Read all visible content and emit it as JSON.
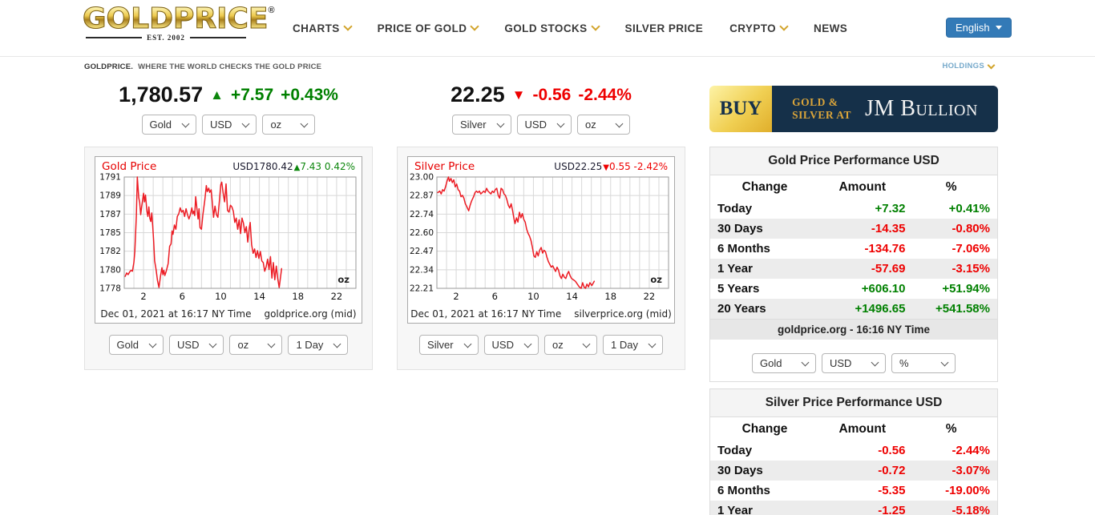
{
  "colors": {
    "green": "#008000",
    "red": "#ee0000",
    "gold_accent": "#d2a42b",
    "navy": "#153049",
    "link_blue": "#337ab7",
    "holdings_blue": "#76a9cb",
    "chart_line": "#ec1c24"
  },
  "header": {
    "logo": {
      "text": "GOLDPRICE",
      "reg": "®",
      "subtext": "EST. 2002"
    },
    "nav": [
      {
        "label": "CHARTS",
        "dropdown": true
      },
      {
        "label": "PRICE OF GOLD",
        "dropdown": true
      },
      {
        "label": "GOLD STOCKS",
        "dropdown": true
      },
      {
        "label": "SILVER PRICE",
        "dropdown": false
      },
      {
        "label": "CRYPTO",
        "dropdown": true
      },
      {
        "label": "NEWS",
        "dropdown": false
      }
    ],
    "language": "English"
  },
  "tagline": {
    "brand": "GOLDPRICE.",
    "text": "WHERE THE WORLD CHECKS THE GOLD PRICE",
    "holdings": "HOLDINGS"
  },
  "tickers": [
    {
      "price": "1,780.57",
      "arrow": "▲",
      "direction": "up",
      "change": "+7.57",
      "change_pct": "+0.43%",
      "selects": [
        "Gold",
        "USD",
        "oz"
      ]
    },
    {
      "price": "22.25",
      "arrow": "▼",
      "direction": "down",
      "change": "-0.56",
      "change_pct": "-2.44%",
      "selects": [
        "Silver",
        "USD",
        "oz"
      ]
    }
  ],
  "banner": {
    "buy": "BUY",
    "line1": "Gold &",
    "line2": "Silver at",
    "brand": "JM Bullion"
  },
  "chart_data": [
    {
      "type": "line",
      "title": "Gold Price",
      "legend": {
        "value": "USD1780.42",
        "arrow": "▲",
        "change": "7.43",
        "pct": "0.42%",
        "direction": "up"
      },
      "unit_label": "oz",
      "caption": "Dec 01, 2021 at 16:17 NY Time",
      "source": "goldprice.org (mid)",
      "ylim": [
        1778,
        1791
      ],
      "xlim": [
        0,
        24
      ],
      "yticks": [
        "1791",
        "1789",
        "1787",
        "1785",
        "1782",
        "1780",
        "1778"
      ],
      "xticks": [
        2,
        6,
        10,
        14,
        18,
        22
      ],
      "selects": [
        "Gold",
        "USD",
        "oz",
        "1 Day"
      ],
      "points": [
        [
          0.1,
          1779.4
        ],
        [
          0.25,
          1779.8
        ],
        [
          0.4,
          1779.6
        ],
        [
          0.55,
          1779.9
        ],
        [
          0.7,
          1780.1
        ],
        [
          0.85,
          1780.0
        ],
        [
          1.0,
          1781.0
        ],
        [
          1.1,
          1782.3
        ],
        [
          1.25,
          1786.5
        ],
        [
          1.35,
          1791.0
        ],
        [
          1.5,
          1788.6
        ],
        [
          1.6,
          1788.0
        ],
        [
          1.7,
          1786.6
        ],
        [
          1.8,
          1787.5
        ],
        [
          1.9,
          1788.3
        ],
        [
          2.0,
          1789.1
        ],
        [
          2.1,
          1788.1
        ],
        [
          2.2,
          1788.9
        ],
        [
          2.35,
          1787.0
        ],
        [
          2.45,
          1786.4
        ],
        [
          2.55,
          1787.5
        ],
        [
          2.65,
          1786.2
        ],
        [
          2.75,
          1785.8
        ],
        [
          2.85,
          1786.8
        ],
        [
          2.95,
          1785.3
        ],
        [
          3.05,
          1783.5
        ],
        [
          3.15,
          1781.2
        ],
        [
          3.3,
          1780.2
        ],
        [
          3.45,
          1778.9
        ],
        [
          3.6,
          1778.1
        ],
        [
          3.75,
          1779.4
        ],
        [
          3.9,
          1780.4
        ],
        [
          4.0,
          1779.6
        ],
        [
          4.1,
          1780.1
        ],
        [
          4.2,
          1779.5
        ],
        [
          4.35,
          1780.0
        ],
        [
          4.55,
          1780.9
        ],
        [
          4.7,
          1782.9
        ],
        [
          4.85,
          1783.2
        ],
        [
          4.95,
          1784.7
        ],
        [
          5.05,
          1784.3
        ],
        [
          5.2,
          1785.4
        ],
        [
          5.35,
          1784.9
        ],
        [
          5.5,
          1786.4
        ],
        [
          5.65,
          1786.7
        ],
        [
          5.8,
          1787.4
        ],
        [
          5.95,
          1786.9
        ],
        [
          6.1,
          1787.1
        ],
        [
          6.25,
          1786.4
        ],
        [
          6.4,
          1787.3
        ],
        [
          6.55,
          1786.6
        ],
        [
          6.7,
          1786.1
        ],
        [
          6.85,
          1786.6
        ],
        [
          7.0,
          1787.4
        ],
        [
          7.1,
          1786.7
        ],
        [
          7.2,
          1787.0
        ],
        [
          7.3,
          1786.5
        ],
        [
          7.4,
          1788.7
        ],
        [
          7.55,
          1787.1
        ],
        [
          7.65,
          1786.1
        ],
        [
          7.75,
          1787.3
        ],
        [
          7.85,
          1785.1
        ],
        [
          8.0,
          1784.9
        ],
        [
          8.15,
          1786.6
        ],
        [
          8.35,
          1788.3
        ],
        [
          8.5,
          1790.0
        ],
        [
          8.6,
          1789.3
        ],
        [
          8.75,
          1789.7
        ],
        [
          8.85,
          1789.2
        ],
        [
          9.0,
          1789.5
        ],
        [
          9.1,
          1788.3
        ],
        [
          9.25,
          1786.3
        ],
        [
          9.4,
          1787.6
        ],
        [
          9.55,
          1786.6
        ],
        [
          9.7,
          1786.3
        ],
        [
          9.85,
          1788.1
        ],
        [
          10.0,
          1790.1
        ],
        [
          10.1,
          1790.4
        ],
        [
          10.25,
          1789.1
        ],
        [
          10.4,
          1788.1
        ],
        [
          10.55,
          1790.2
        ],
        [
          10.7,
          1787.1
        ],
        [
          10.85,
          1786.9
        ],
        [
          11.0,
          1787.7
        ],
        [
          11.15,
          1787.5
        ],
        [
          11.3,
          1787.0
        ],
        [
          11.45,
          1785.7
        ],
        [
          11.6,
          1786.2
        ],
        [
          11.75,
          1784.9
        ],
        [
          11.9,
          1786.0
        ],
        [
          12.05,
          1784.4
        ],
        [
          12.2,
          1786.2
        ],
        [
          12.35,
          1785.6
        ],
        [
          12.5,
          1784.5
        ],
        [
          12.65,
          1785.2
        ],
        [
          12.8,
          1783.4
        ],
        [
          12.95,
          1785.0
        ],
        [
          13.05,
          1785.7
        ],
        [
          13.2,
          1783.1
        ],
        [
          13.35,
          1782.1
        ],
        [
          13.5,
          1782.6
        ],
        [
          13.65,
          1781.6
        ],
        [
          13.8,
          1782.4
        ],
        [
          13.95,
          1781.5
        ],
        [
          14.1,
          1782.3
        ],
        [
          14.25,
          1781.2
        ],
        [
          14.4,
          1781.0
        ],
        [
          14.55,
          1780.0
        ],
        [
          14.7,
          1780.5
        ],
        [
          14.85,
          1781.4
        ],
        [
          15.0,
          1780.2
        ],
        [
          15.15,
          1781.7
        ],
        [
          15.3,
          1779.2
        ],
        [
          15.45,
          1781.0
        ],
        [
          15.6,
          1779.0
        ],
        [
          15.75,
          1780.6
        ],
        [
          15.9,
          1779.1
        ],
        [
          16.05,
          1778.1
        ],
        [
          16.3,
          1780.3
        ]
      ]
    },
    {
      "type": "line",
      "title": "Silver Price",
      "legend": {
        "value": "USD22.25",
        "arrow": "▼",
        "change": "0.55",
        "pct": "-2.42%",
        "direction": "down"
      },
      "unit_label": "oz",
      "caption": "Dec 01, 2021 at 16:17 NY Time",
      "source": "silverprice.org (mid)",
      "ylim": [
        22.21,
        23.0
      ],
      "xlim": [
        0,
        24
      ],
      "yticks": [
        "23.00",
        "22.87",
        "22.74",
        "22.60",
        "22.47",
        "22.34",
        "22.21"
      ],
      "xticks": [
        2,
        6,
        10,
        14,
        18,
        22
      ],
      "selects": [
        "Silver",
        "USD",
        "oz",
        "1 Day"
      ],
      "points": [
        [
          0.1,
          22.89
        ],
        [
          0.3,
          22.9
        ],
        [
          0.45,
          22.88
        ],
        [
          0.6,
          22.91
        ],
        [
          0.75,
          22.9
        ],
        [
          0.9,
          22.93
        ],
        [
          1.05,
          22.97
        ],
        [
          1.2,
          23.0
        ],
        [
          1.3,
          22.97
        ],
        [
          1.45,
          22.99
        ],
        [
          1.6,
          22.96
        ],
        [
          1.75,
          22.98
        ],
        [
          1.9,
          22.93
        ],
        [
          2.05,
          22.95
        ],
        [
          2.2,
          22.91
        ],
        [
          2.35,
          22.9
        ],
        [
          2.5,
          22.86
        ],
        [
          2.65,
          22.87
        ],
        [
          2.8,
          22.85
        ],
        [
          2.95,
          22.81
        ],
        [
          3.1,
          22.79
        ],
        [
          3.3,
          22.76
        ],
        [
          3.45,
          22.8
        ],
        [
          3.6,
          22.83
        ],
        [
          3.8,
          22.86
        ],
        [
          3.95,
          22.89
        ],
        [
          4.1,
          22.9
        ],
        [
          4.25,
          22.89
        ],
        [
          4.4,
          22.9
        ],
        [
          4.55,
          22.88
        ],
        [
          4.7,
          22.89
        ],
        [
          4.85,
          22.9
        ],
        [
          5.0,
          22.89
        ],
        [
          5.15,
          22.92
        ],
        [
          5.3,
          22.9
        ],
        [
          5.45,
          22.89
        ],
        [
          5.6,
          22.88
        ],
        [
          5.75,
          22.9
        ],
        [
          5.9,
          22.89
        ],
        [
          6.05,
          22.91
        ],
        [
          6.2,
          22.92
        ],
        [
          6.35,
          22.87
        ],
        [
          6.5,
          22.85
        ],
        [
          6.65,
          22.92
        ],
        [
          6.8,
          22.91
        ],
        [
          6.95,
          22.88
        ],
        [
          7.1,
          22.87
        ],
        [
          7.25,
          22.84
        ],
        [
          7.4,
          22.8
        ],
        [
          7.55,
          22.78
        ],
        [
          7.7,
          22.81
        ],
        [
          7.85,
          22.76
        ],
        [
          8.0,
          22.7
        ],
        [
          8.1,
          22.67
        ],
        [
          8.25,
          22.71
        ],
        [
          8.4,
          22.68
        ],
        [
          8.55,
          22.75
        ],
        [
          8.7,
          22.71
        ],
        [
          8.85,
          22.74
        ],
        [
          9.0,
          22.7
        ],
        [
          9.15,
          22.68
        ],
        [
          9.3,
          22.63
        ],
        [
          9.45,
          22.6
        ],
        [
          9.6,
          22.58
        ],
        [
          9.75,
          22.55
        ],
        [
          9.9,
          22.5
        ],
        [
          10.05,
          22.44
        ],
        [
          10.2,
          22.43
        ],
        [
          10.35,
          22.47
        ],
        [
          10.5,
          22.44
        ],
        [
          10.65,
          22.48
        ],
        [
          10.8,
          22.5
        ],
        [
          10.95,
          22.46
        ],
        [
          11.1,
          22.48
        ],
        [
          11.25,
          22.47
        ],
        [
          11.4,
          22.43
        ],
        [
          11.55,
          22.4
        ],
        [
          11.7,
          22.38
        ],
        [
          11.85,
          22.36
        ],
        [
          12.0,
          22.37
        ],
        [
          12.15,
          22.35
        ],
        [
          12.3,
          22.33
        ],
        [
          12.45,
          22.36
        ],
        [
          12.6,
          22.34
        ],
        [
          12.75,
          22.3
        ],
        [
          12.9,
          22.28
        ],
        [
          13.05,
          22.31
        ],
        [
          13.2,
          22.29
        ],
        [
          13.35,
          22.28
        ],
        [
          13.5,
          22.31
        ],
        [
          13.65,
          22.33
        ],
        [
          13.8,
          22.3
        ],
        [
          13.95,
          22.28
        ],
        [
          14.15,
          22.27
        ],
        [
          14.35,
          22.26
        ],
        [
          14.55,
          22.24
        ],
        [
          14.75,
          22.22
        ],
        [
          14.95,
          22.21
        ],
        [
          15.1,
          22.25
        ],
        [
          15.25,
          22.22
        ],
        [
          15.4,
          22.21
        ],
        [
          15.55,
          22.24
        ],
        [
          15.7,
          22.22
        ],
        [
          15.85,
          22.25
        ],
        [
          16.05,
          22.23
        ],
        [
          16.3,
          22.26
        ]
      ]
    }
  ],
  "performance_tables": [
    {
      "title": "Gold Price Performance USD",
      "columns": [
        "Change",
        "Amount",
        "%"
      ],
      "rows": [
        {
          "label": "Today",
          "amount": "+7.32",
          "pct": "+0.41%"
        },
        {
          "label": "30 Days",
          "amount": "-14.35",
          "pct": "-0.80%"
        },
        {
          "label": "6 Months",
          "amount": "-134.76",
          "pct": "-7.06%"
        },
        {
          "label": "1 Year",
          "amount": "-57.69",
          "pct": "-3.15%"
        },
        {
          "label": "5 Years",
          "amount": "+606.10",
          "pct": "+51.94%"
        },
        {
          "label": "20 Years",
          "amount": "+1496.65",
          "pct": "+541.58%"
        }
      ],
      "footer": "goldprice.org - 16:16 NY Time",
      "selects": [
        "Gold",
        "USD",
        "%"
      ]
    },
    {
      "title": "Silver Price Performance USD",
      "columns": [
        "Change",
        "Amount",
        "%"
      ],
      "rows": [
        {
          "label": "Today",
          "amount": "-0.56",
          "pct": "-2.44%"
        },
        {
          "label": "30 Days",
          "amount": "-0.72",
          "pct": "-3.07%"
        },
        {
          "label": "6 Months",
          "amount": "-5.35",
          "pct": "-19.00%"
        },
        {
          "label": "1 Year",
          "amount": "-1.25",
          "pct": "-5.18%"
        }
      ]
    }
  ]
}
